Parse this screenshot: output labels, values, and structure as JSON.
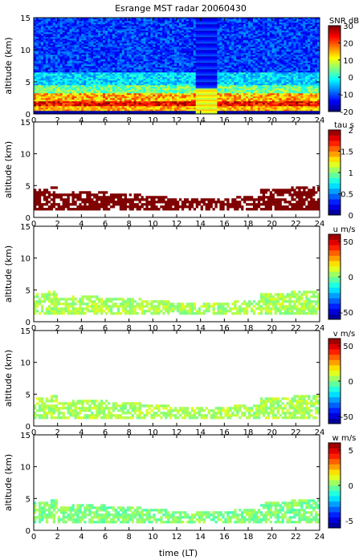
{
  "title": "Esrange MST radar 20060430",
  "xlabel": "time (LT)",
  "x_ticks": [
    0,
    2,
    4,
    6,
    8,
    10,
    12,
    14,
    16,
    18,
    20,
    22,
    24
  ],
  "x_tick_labels": [
    "0",
    "2",
    "4",
    "6",
    "8",
    "10",
    "12",
    "14",
    "16",
    "18",
    "20",
    "22",
    "24"
  ],
  "chart_data": [
    {
      "type": "heatmap",
      "panel": "snr",
      "ylabel": "altitude (km)",
      "xlim": [
        0,
        24
      ],
      "ylim": [
        0,
        15
      ],
      "y_ticks": [
        0,
        5,
        10,
        15
      ],
      "colorbar": {
        "label": "SNR dB",
        "range": [
          -20,
          30
        ],
        "ticks": [
          30,
          20,
          10,
          0,
          -10,
          -20
        ]
      },
      "layers": [
        {
          "alt_km": 1.5,
          "value_dB": 25
        },
        {
          "alt_km": 2.5,
          "value_dB": 15
        },
        {
          "alt_km": 3.5,
          "value_dB": 5
        },
        {
          "alt_km": 5.0,
          "value_dB": -5
        },
        {
          "alt_km": 10.0,
          "value_dB": -12
        }
      ]
    },
    {
      "type": "heatmap",
      "panel": "tau",
      "ylabel": "altitude (km)",
      "xlim": [
        0,
        24
      ],
      "ylim": [
        0,
        15
      ],
      "y_ticks": [
        0,
        5,
        10,
        15
      ],
      "colorbar": {
        "label": "tau s",
        "range": [
          0,
          2
        ],
        "ticks": [
          2,
          1.5,
          1,
          0.5,
          0
        ]
      },
      "layer_range_km": [
        1,
        4
      ],
      "dominant_value": 2
    },
    {
      "type": "heatmap",
      "panel": "u",
      "ylabel": "altitude (km)",
      "xlim": [
        0,
        24
      ],
      "ylim": [
        0,
        15
      ],
      "y_ticks": [
        0,
        5,
        10,
        15
      ],
      "colorbar": {
        "label": "u m/s",
        "range": [
          -60,
          60
        ],
        "ticks": [
          50,
          0,
          -50
        ]
      },
      "layer_range_km": [
        1,
        4
      ],
      "dominant_value": 5
    },
    {
      "type": "heatmap",
      "panel": "v",
      "ylabel": "altitude (km)",
      "xlim": [
        0,
        24
      ],
      "ylim": [
        0,
        15
      ],
      "y_ticks": [
        0,
        5,
        10,
        15
      ],
      "colorbar": {
        "label": "v m/s",
        "range": [
          -60,
          60
        ],
        "ticks": [
          50,
          0,
          -50
        ]
      },
      "layer_range_km": [
        1,
        4
      ],
      "dominant_value": 5
    },
    {
      "type": "heatmap",
      "panel": "w",
      "ylabel": "altitude (km)",
      "xlim": [
        0,
        24
      ],
      "ylim": [
        0,
        15
      ],
      "y_ticks": [
        0,
        5,
        10,
        15
      ],
      "colorbar": {
        "label": "w m/s",
        "range": [
          -6,
          6
        ],
        "ticks": [
          5,
          0,
          -5
        ]
      },
      "layer_range_km": [
        1,
        4
      ],
      "dominant_value": 0
    }
  ]
}
